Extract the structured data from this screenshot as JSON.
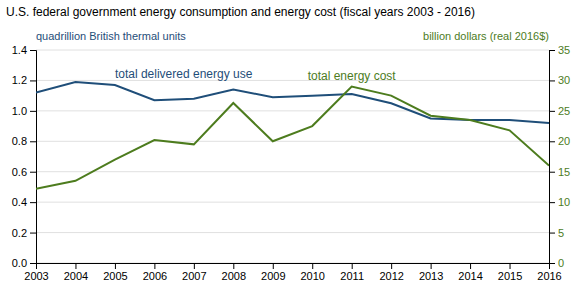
{
  "chart_data": {
    "type": "line",
    "title": "U.S. federal government energy consumption and energy cost (fiscal years 2003 - 2016)",
    "ylabel": "quadrillion British thermal units",
    "y2label": "billion dollars (real 2016$)",
    "x": [
      2003,
      2004,
      2005,
      2006,
      2007,
      2008,
      2009,
      2010,
      2011,
      2012,
      2013,
      2014,
      2015,
      2016
    ],
    "xlim": [
      2003,
      2016
    ],
    "xticks": [
      2003,
      2004,
      2005,
      2006,
      2007,
      2008,
      2009,
      2010,
      2011,
      2012,
      2013,
      2014,
      2015,
      2016
    ],
    "ylim": [
      0,
      1.4
    ],
    "yticks": [
      {
        "value": 0,
        "label": "0.0"
      },
      0.2,
      0.4,
      0.6,
      0.8,
      {
        "value": 1,
        "label": "1.0"
      },
      1.2,
      1.4
    ],
    "y2lim": [
      0,
      35
    ],
    "y2ticks": [
      0,
      5,
      10,
      15,
      20,
      25,
      30,
      35
    ],
    "grid": true,
    "series": [
      {
        "name": "total delivered energy use",
        "color": "#1f4e79",
        "values": [
          1.12,
          1.19,
          1.17,
          1.07,
          1.08,
          1.14,
          1.09,
          1.1,
          1.11,
          1.05,
          0.95,
          0.94,
          0.94,
          0.92
        ]
      },
      {
        "name": "total energy cost",
        "color": "#4d7c1e",
        "axis": "y2",
        "values": [
          12.2,
          13.5,
          17.0,
          20.2,
          19.5,
          26.3,
          20.0,
          22.5,
          29.0,
          27.5,
          24.2,
          23.5,
          21.8,
          16.0
        ]
      }
    ]
  }
}
